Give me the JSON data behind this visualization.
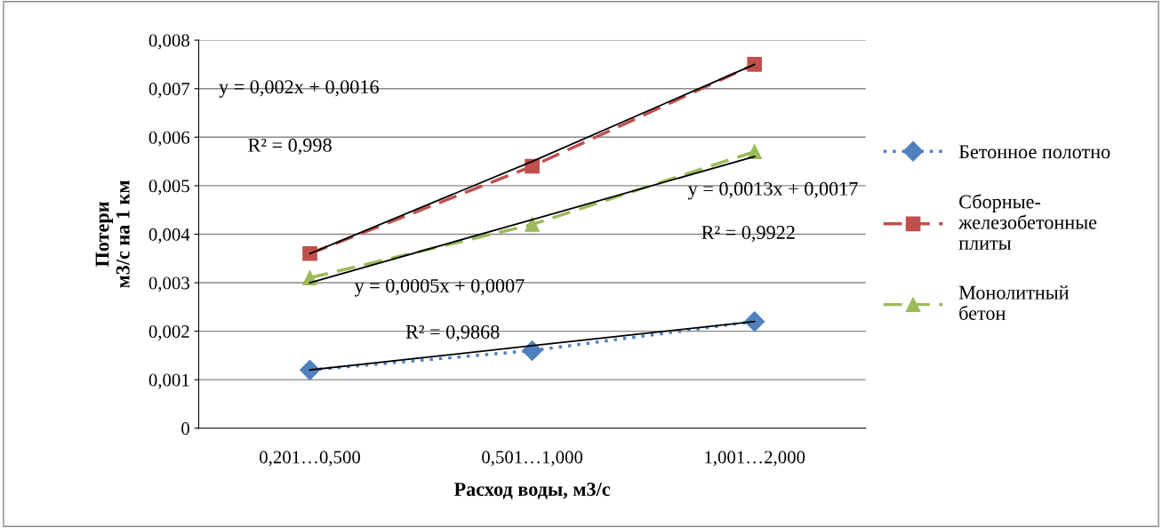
{
  "chart_data": {
    "type": "line",
    "xlabel": "Расход воды, м3/с",
    "ylabel": "Потери\nм3/с на 1 км",
    "categories": [
      "0,201…0,500",
      "0,501…1,000",
      "1,001…2,000"
    ],
    "ylim": [
      0,
      0.008
    ],
    "yticks": [
      0,
      {
        "value": 0.001,
        "label": "0,001"
      },
      {
        "value": 0.002,
        "label": "0,002"
      },
      {
        "value": 0.003,
        "label": "0,003"
      },
      {
        "value": 0.004,
        "label": "0,004"
      },
      {
        "value": 0.005,
        "label": "0,005"
      },
      {
        "value": 0.006,
        "label": "0,006"
      },
      {
        "value": 0.007,
        "label": "0,007"
      },
      {
        "value": 0.008,
        "label": "0,008"
      }
    ],
    "grid": "y",
    "legend": "right",
    "series": [
      {
        "name": "Бетонное полотно",
        "color": "#4f81bd",
        "values": [
          0.0012,
          0.0016,
          0.0022
        ],
        "marker": "diamond",
        "line_style": "dotted"
      },
      {
        "name": "Сборные-железобетонные плиты",
        "color": "#c0504d",
        "values": [
          0.0036,
          0.0054,
          0.0075
        ],
        "marker": "square",
        "line_style": "dashed"
      },
      {
        "name": "Монолитный бетон",
        "color": "#9bbb59",
        "values": [
          0.0031,
          0.0042,
          0.0057
        ],
        "marker": "triangle",
        "line_style": "dashed"
      },
      {
        "type": "line",
        "color": "#000000",
        "values": [
          0.0036,
          0.0055,
          0.0075
        ],
        "marker": "none",
        "line_style": "solid"
      },
      {
        "type": "line",
        "color": "#000000",
        "values": [
          0.003,
          0.0043,
          0.0056
        ],
        "marker": "none",
        "line_style": "solid"
      },
      {
        "type": "line",
        "color": "#000000",
        "values": [
          0.0012,
          0.0017,
          0.0022
        ],
        "marker": "none",
        "line_style": "solid"
      }
    ],
    "annotations": [
      "y = 0,002x + 0,0016",
      "R² = 0,998",
      "y = 0,0013x + 0,0017",
      "R² = 0,9922",
      "y = 0,0005x + 0,0007",
      "R² = 0,9868"
    ]
  }
}
